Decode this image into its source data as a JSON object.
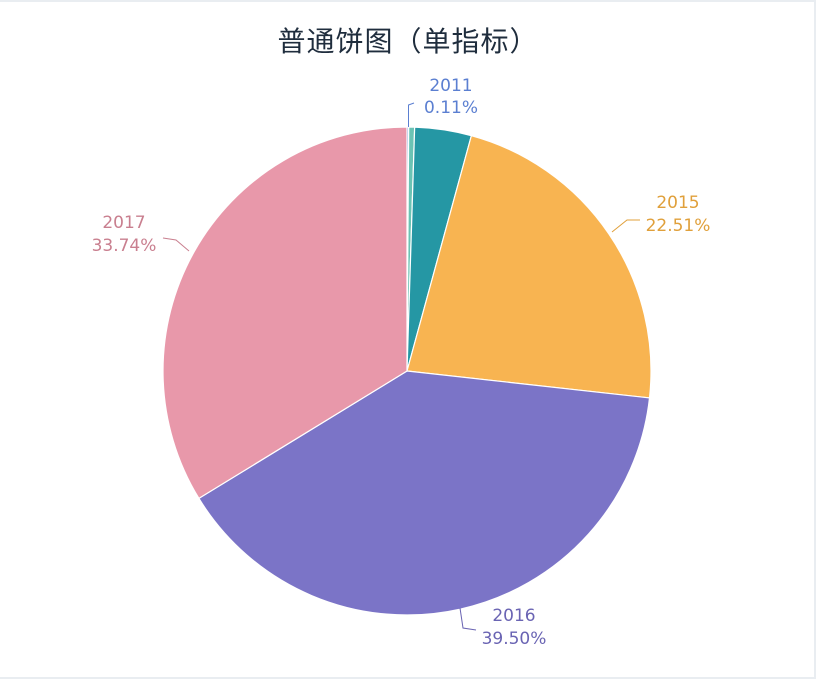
{
  "chart_data": {
    "type": "pie",
    "title": "普通饼图（单指标）",
    "slices": [
      {
        "label": "2011",
        "value": 0.11,
        "percent_label": "0.11%",
        "color": "#5b7fd1",
        "show_label": true
      },
      {
        "label": "",
        "value": 0.39,
        "percent_label": "",
        "color": "#6bc3b4",
        "show_label": false
      },
      {
        "label": "",
        "value": 3.75,
        "percent_label": "",
        "color": "#2597a4",
        "show_label": false
      },
      {
        "label": "2015",
        "value": 22.51,
        "percent_label": "22.51%",
        "color": "#f8b451",
        "show_label": true
      },
      {
        "label": "2016",
        "value": 39.5,
        "percent_label": "39.50%",
        "color": "#7b74c7",
        "show_label": true
      },
      {
        "label": "2017",
        "value": 33.74,
        "percent_label": "33.74%",
        "color": "#e898aa",
        "show_label": true
      }
    ],
    "label_colors": {
      "2011": "#5b7fd1",
      "2015": "#e0a03b",
      "2016": "#6a64b3",
      "2017": "#c97f8f"
    }
  }
}
